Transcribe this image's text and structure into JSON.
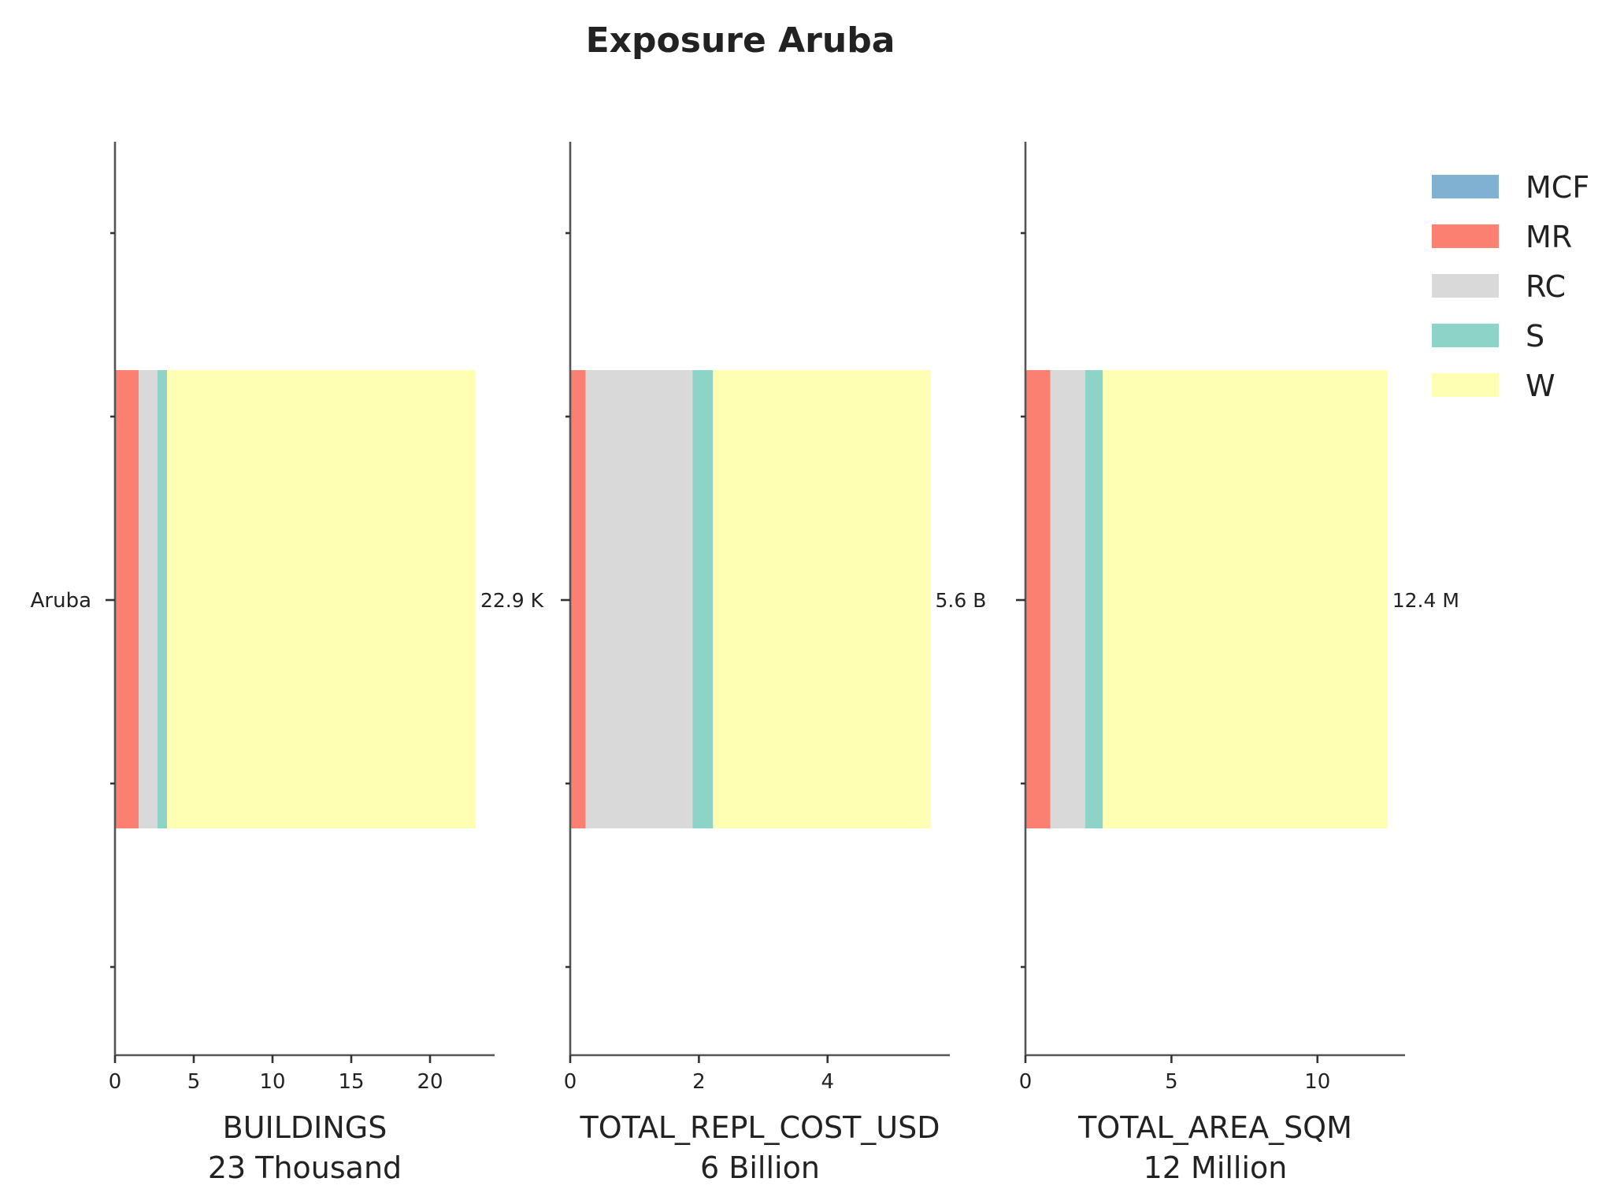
{
  "chart_data": {
    "type": "bar",
    "orientation": "horizontal",
    "stacked": true,
    "title": "Exposure Aruba",
    "category_label": "Aruba",
    "legend": {
      "placement": "top-right",
      "entries": [
        {
          "name": "MCF",
          "color": "#80b1d3"
        },
        {
          "name": "MR",
          "color": "#fb8072"
        },
        {
          "name": "RC",
          "color": "#d9d9d9"
        },
        {
          "name": "S",
          "color": "#8dd3c7"
        },
        {
          "name": "W",
          "color": "#ffffb3"
        }
      ]
    },
    "panels": [
      {
        "xlabel": "BUILDINGS",
        "xsublabel": "23 Thousand",
        "xlim": [
          0,
          24.1
        ],
        "xticks": [
          0,
          5,
          10,
          15,
          20
        ],
        "xtick_labels": [
          "0",
          "5",
          "10",
          "15",
          "20"
        ],
        "total_label": "22.9 K",
        "segments": [
          {
            "series": "MCF",
            "value": 0.0
          },
          {
            "series": "MR",
            "value": 1.5
          },
          {
            "series": "RC",
            "value": 1.2
          },
          {
            "series": "S",
            "value": 0.6
          },
          {
            "series": "W",
            "value": 19.6
          }
        ]
      },
      {
        "xlabel": "TOTAL_REPL_COST_USD",
        "xsublabel": "6 Billion",
        "xlim": [
          0,
          5.9
        ],
        "xticks": [
          0,
          2,
          4
        ],
        "xtick_labels": [
          "0",
          "2",
          "4"
        ],
        "total_label": "5.6 B",
        "segments": [
          {
            "series": "MCF",
            "value": 0.0
          },
          {
            "series": "MR",
            "value": 0.24
          },
          {
            "series": "RC",
            "value": 1.66
          },
          {
            "series": "S",
            "value": 0.32
          },
          {
            "series": "W",
            "value": 3.38
          }
        ]
      },
      {
        "xlabel": "TOTAL_AREA_SQM",
        "xsublabel": "12 Million",
        "xlim": [
          0,
          13.0
        ],
        "xticks": [
          0,
          5,
          10
        ],
        "xtick_labels": [
          "0",
          "5",
          "10"
        ],
        "total_label": "12.4 M",
        "segments": [
          {
            "series": "MCF",
            "value": 0.0
          },
          {
            "series": "MR",
            "value": 0.85
          },
          {
            "series": "RC",
            "value": 1.2
          },
          {
            "series": "S",
            "value": 0.6
          },
          {
            "series": "W",
            "value": 9.75
          }
        ]
      }
    ]
  }
}
